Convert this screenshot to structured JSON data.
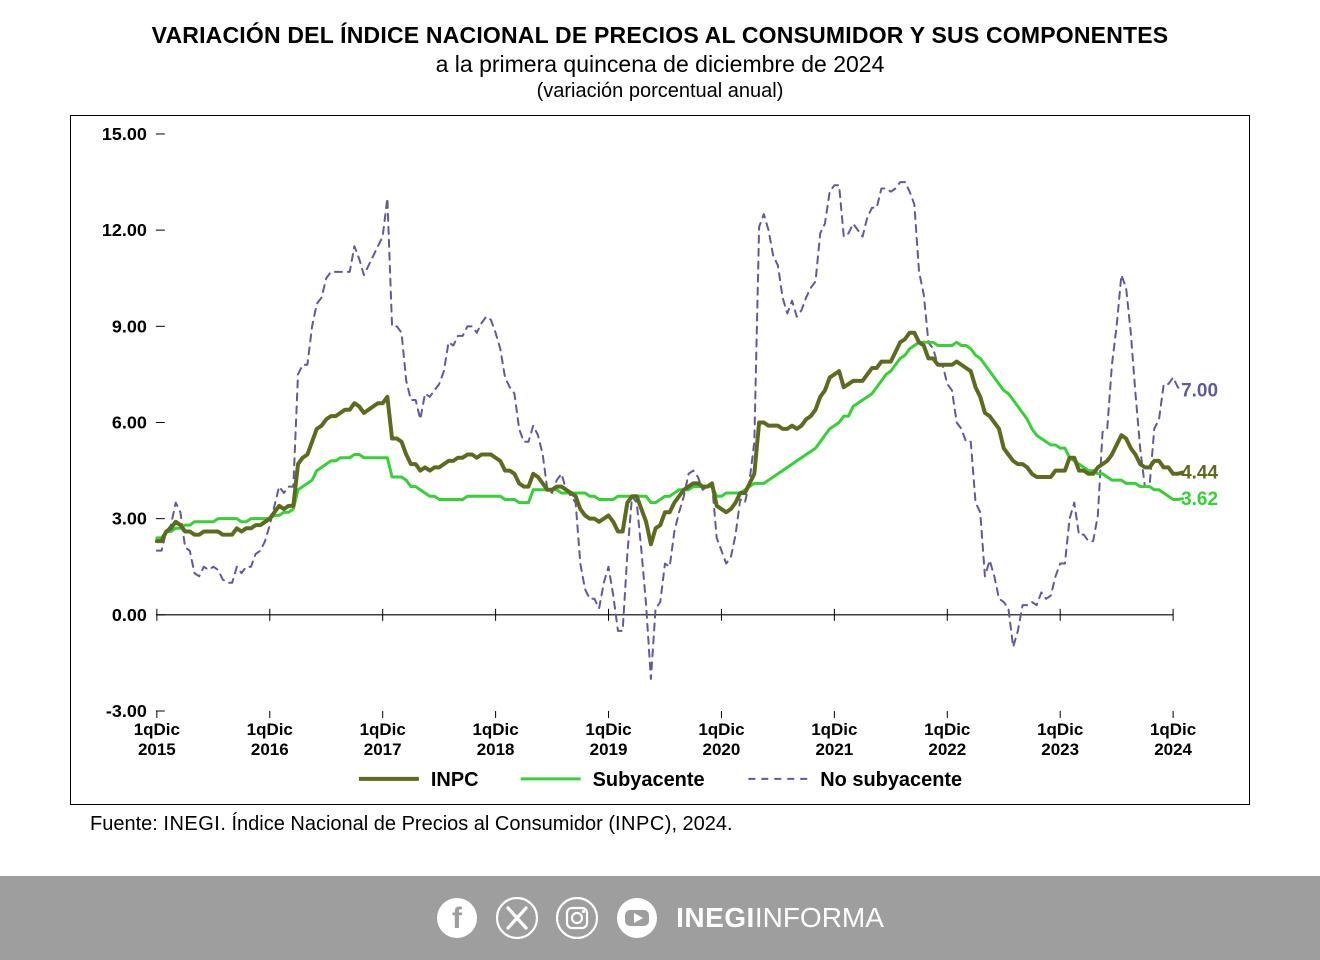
{
  "title": {
    "main": "VARIACIÓN DEL ÍNDICE NACIONAL DE PRECIOS AL CONSUMIDOR Y SUS COMPONENTES",
    "subtitle": "a la primera quincena de diciembre de 2024",
    "note": "(variación porcentual anual)"
  },
  "source": {
    "prefix": "Fuente: ",
    "agency": "INEGI",
    "mid": ". Índice Nacional de Precios al Consumidor (",
    "abbr": "INPC",
    "suffix": "), 2024."
  },
  "footer": {
    "brand_bold": "INEGI",
    "brand_light": "INFORMA"
  },
  "chart": {
    "type": "line",
    "background_color": "#ffffff",
    "border_color": "#000000",
    "ylim": [
      -3,
      15
    ],
    "yticks": [
      -3,
      0,
      3,
      6,
      9,
      12,
      15
    ],
    "ytick_labels": [
      "-3.00",
      "0.00",
      "3.00",
      "6.00",
      "9.00",
      "12.00",
      "15.00"
    ],
    "ytick_fontsize": 18,
    "xtick_fontsize": 17,
    "xtick_positions": [
      0,
      24,
      48,
      72,
      96,
      120,
      144,
      168,
      192,
      216
    ],
    "xtick_labels_line1": [
      "1qDic",
      "1qDic",
      "1qDic",
      "1qDic",
      "1qDic",
      "1qDic",
      "1qDic",
      "1qDic",
      "1qDic",
      "1qDic"
    ],
    "xtick_labels_line2": [
      "2015",
      "2016",
      "2017",
      "2018",
      "2019",
      "2020",
      "2021",
      "2022",
      "2023",
      "2024"
    ],
    "x_count": 217,
    "axis_label_color": "#000000",
    "zero_line_color": "#000000",
    "zero_line_width": 1.2,
    "legend": {
      "fontsize": 20,
      "items": [
        {
          "label": "INPC",
          "series": "inpc"
        },
        {
          "label": "Subyacente",
          "series": "sub"
        },
        {
          "label": "No subyacente",
          "series": "nosub"
        }
      ]
    },
    "end_labels": [
      {
        "series": "nosub",
        "text": "7.00",
        "y": 7.0
      },
      {
        "series": "inpc",
        "text": "4.44",
        "y": 4.44
      },
      {
        "series": "sub",
        "text": "3.62",
        "y": 3.62
      }
    ],
    "series": {
      "inpc": {
        "color": "#5d6b1f",
        "width": 4.0,
        "dash": null,
        "data": [
          2.3,
          2.3,
          2.6,
          2.7,
          2.9,
          2.8,
          2.6,
          2.6,
          2.5,
          2.5,
          2.6,
          2.6,
          2.6,
          2.6,
          2.5,
          2.5,
          2.5,
          2.7,
          2.6,
          2.7,
          2.7,
          2.8,
          2.8,
          2.9,
          3.0,
          3.2,
          3.4,
          3.3,
          3.4,
          3.4,
          4.7,
          4.9,
          5.0,
          5.4,
          5.8,
          5.9,
          6.1,
          6.2,
          6.2,
          6.3,
          6.4,
          6.4,
          6.6,
          6.5,
          6.3,
          6.4,
          6.5,
          6.6,
          6.6,
          6.8,
          5.5,
          5.5,
          5.4,
          5.0,
          4.7,
          4.7,
          4.5,
          4.6,
          4.5,
          4.6,
          4.6,
          4.7,
          4.8,
          4.8,
          4.9,
          4.9,
          5.0,
          5.0,
          4.9,
          5.0,
          5.0,
          5.0,
          4.9,
          4.8,
          4.5,
          4.5,
          4.4,
          4.1,
          4.0,
          4.0,
          4.4,
          4.3,
          4.1,
          3.9,
          3.9,
          4.0,
          4.0,
          3.9,
          3.8,
          3.7,
          3.3,
          3.1,
          3.0,
          3.0,
          2.9,
          3.0,
          3.1,
          2.9,
          2.6,
          2.6,
          3.5,
          3.7,
          3.7,
          3.3,
          2.9,
          2.2,
          2.7,
          2.8,
          3.2,
          3.2,
          3.5,
          3.7,
          3.9,
          4.0,
          4.1,
          4.1,
          4.0,
          4.0,
          4.1,
          3.4,
          3.3,
          3.2,
          3.3,
          3.5,
          3.8,
          3.8,
          4.1,
          4.4,
          6.0,
          6.0,
          5.9,
          5.9,
          5.9,
          5.8,
          5.8,
          5.9,
          5.8,
          5.9,
          6.1,
          6.2,
          6.4,
          6.8,
          7.0,
          7.4,
          7.5,
          7.6,
          7.1,
          7.2,
          7.3,
          7.3,
          7.3,
          7.5,
          7.7,
          7.7,
          7.9,
          7.9,
          7.9,
          8.2,
          8.5,
          8.6,
          8.8,
          8.8,
          8.5,
          8.4,
          8.0,
          8.0,
          7.8,
          7.8,
          7.8,
          7.8,
          7.9,
          7.8,
          7.7,
          7.6,
          7.1,
          6.8,
          6.3,
          6.2,
          6.0,
          5.8,
          5.2,
          5.0,
          4.8,
          4.7,
          4.7,
          4.6,
          4.4,
          4.3,
          4.3,
          4.3,
          4.3,
          4.5,
          4.5,
          4.5,
          4.9,
          4.9,
          4.5,
          4.5,
          4.4,
          4.4,
          4.6,
          4.7,
          4.8,
          5.0,
          5.3,
          5.6,
          5.5,
          5.2,
          5.0,
          4.7,
          4.6,
          4.6,
          4.8,
          4.8,
          4.6,
          4.6,
          4.4,
          4.4,
          4.44
        ]
      },
      "sub": {
        "color": "#35d135",
        "width": 3.0,
        "dash": null,
        "data": [
          2.4,
          2.4,
          2.6,
          2.6,
          2.7,
          2.7,
          2.8,
          2.8,
          2.9,
          2.9,
          2.9,
          2.9,
          2.9,
          3.0,
          3.0,
          3.0,
          3.0,
          3.0,
          2.9,
          2.9,
          3.0,
          3.0,
          3.0,
          3.0,
          3.0,
          3.1,
          3.1,
          3.2,
          3.2,
          3.3,
          3.9,
          4.0,
          4.1,
          4.2,
          4.5,
          4.6,
          4.7,
          4.8,
          4.8,
          4.9,
          4.9,
          4.9,
          5.0,
          5.0,
          4.9,
          4.9,
          4.9,
          4.9,
          4.9,
          4.9,
          4.3,
          4.3,
          4.3,
          4.2,
          4.0,
          4.0,
          3.9,
          3.8,
          3.7,
          3.7,
          3.6,
          3.6,
          3.6,
          3.6,
          3.6,
          3.6,
          3.7,
          3.7,
          3.7,
          3.7,
          3.7,
          3.7,
          3.7,
          3.7,
          3.6,
          3.6,
          3.6,
          3.5,
          3.5,
          3.5,
          3.9,
          3.9,
          3.9,
          3.9,
          3.9,
          3.9,
          3.8,
          3.8,
          3.8,
          3.8,
          3.8,
          3.8,
          3.7,
          3.7,
          3.6,
          3.6,
          3.6,
          3.6,
          3.7,
          3.7,
          3.7,
          3.7,
          3.7,
          3.7,
          3.7,
          3.5,
          3.5,
          3.6,
          3.7,
          3.7,
          3.8,
          3.9,
          3.9,
          3.9,
          4.0,
          4.0,
          4.0,
          4.0,
          4.0,
          3.7,
          3.7,
          3.8,
          3.8,
          3.8,
          3.8,
          3.9,
          4.0,
          4.1,
          4.1,
          4.1,
          4.2,
          4.3,
          4.4,
          4.5,
          4.6,
          4.7,
          4.8,
          4.9,
          5.0,
          5.1,
          5.2,
          5.4,
          5.6,
          5.8,
          5.9,
          6.0,
          6.2,
          6.2,
          6.5,
          6.6,
          6.7,
          6.8,
          6.9,
          7.1,
          7.3,
          7.5,
          7.6,
          7.8,
          8.0,
          8.1,
          8.3,
          8.4,
          8.5,
          8.5,
          8.5,
          8.5,
          8.4,
          8.4,
          8.4,
          8.4,
          8.5,
          8.4,
          8.4,
          8.3,
          8.1,
          8.0,
          7.8,
          7.6,
          7.4,
          7.2,
          7.0,
          6.9,
          6.7,
          6.5,
          6.3,
          6.1,
          5.8,
          5.6,
          5.5,
          5.4,
          5.3,
          5.3,
          5.2,
          5.2,
          4.9,
          4.8,
          4.7,
          4.6,
          4.5,
          4.5,
          4.4,
          4.4,
          4.3,
          4.2,
          4.2,
          4.2,
          4.1,
          4.1,
          4.1,
          4.0,
          4.0,
          4.0,
          3.9,
          3.9,
          3.8,
          3.7,
          3.6,
          3.6,
          3.62
        ]
      },
      "nosub": {
        "color": "#5f5a99",
        "width": 2.0,
        "dash": "7 6",
        "data": [
          2.0,
          2.0,
          2.6,
          2.8,
          3.5,
          3.2,
          2.1,
          2.0,
          1.3,
          1.2,
          1.5,
          1.4,
          1.5,
          1.4,
          1.1,
          1.0,
          1.0,
          1.5,
          1.3,
          1.5,
          1.5,
          1.9,
          2.0,
          2.3,
          2.8,
          3.4,
          4.0,
          3.8,
          4.0,
          4.0,
          7.5,
          7.8,
          7.8,
          9.0,
          9.7,
          9.9,
          10.5,
          10.7,
          10.7,
          10.7,
          10.7,
          10.7,
          11.5,
          11.1,
          10.6,
          10.9,
          11.2,
          11.5,
          11.8,
          13.0,
          9.0,
          9.0,
          8.8,
          7.3,
          6.7,
          6.7,
          6.1,
          6.9,
          6.8,
          7.0,
          7.2,
          7.6,
          8.5,
          8.4,
          8.7,
          8.7,
          9.0,
          9.0,
          8.8,
          9.1,
          9.3,
          9.2,
          8.8,
          8.3,
          7.4,
          7.1,
          6.9,
          5.8,
          5.4,
          5.4,
          5.9,
          5.6,
          5.0,
          3.9,
          3.8,
          4.2,
          4.4,
          3.9,
          3.7,
          3.5,
          1.6,
          0.8,
          0.5,
          0.5,
          0.2,
          1.0,
          1.5,
          0.6,
          -0.5,
          -0.5,
          1.9,
          3.7,
          3.5,
          2.0,
          0.3,
          -2.0,
          0.2,
          0.4,
          1.6,
          1.5,
          2.6,
          3.2,
          3.7,
          4.4,
          4.5,
          4.3,
          3.9,
          4.0,
          4.1,
          2.4,
          2.0,
          1.6,
          1.8,
          2.5,
          3.6,
          3.5,
          4.2,
          5.4,
          12.1,
          12.5,
          12.0,
          11.2,
          10.9,
          9.9,
          9.4,
          9.8,
          9.3,
          9.5,
          9.9,
          10.2,
          10.4,
          11.9,
          12.2,
          13.2,
          13.4,
          13.4,
          11.8,
          11.9,
          12.2,
          12.0,
          11.8,
          12.4,
          12.7,
          12.7,
          13.3,
          13.3,
          13.2,
          13.3,
          13.5,
          13.5,
          13.2,
          12.8,
          10.7,
          10.0,
          8.5,
          8.3,
          7.8,
          7.8,
          7.2,
          7.0,
          6.0,
          5.8,
          5.4,
          5.4,
          3.5,
          3.2,
          1.2,
          1.7,
          1.2,
          0.5,
          0.4,
          0.2,
          -1.0,
          -0.5,
          0.3,
          0.3,
          0.4,
          0.3,
          0.7,
          0.5,
          0.6,
          1.2,
          1.6,
          1.6,
          3.0,
          3.5,
          2.5,
          2.5,
          2.3,
          2.3,
          3.1,
          5.7,
          5.8,
          7.8,
          9.0,
          10.6,
          10.2,
          8.8,
          6.9,
          5.2,
          4.0,
          4.0,
          5.8,
          6.1,
          7.2,
          7.2,
          7.4,
          7.1,
          7.0
        ]
      }
    }
  }
}
